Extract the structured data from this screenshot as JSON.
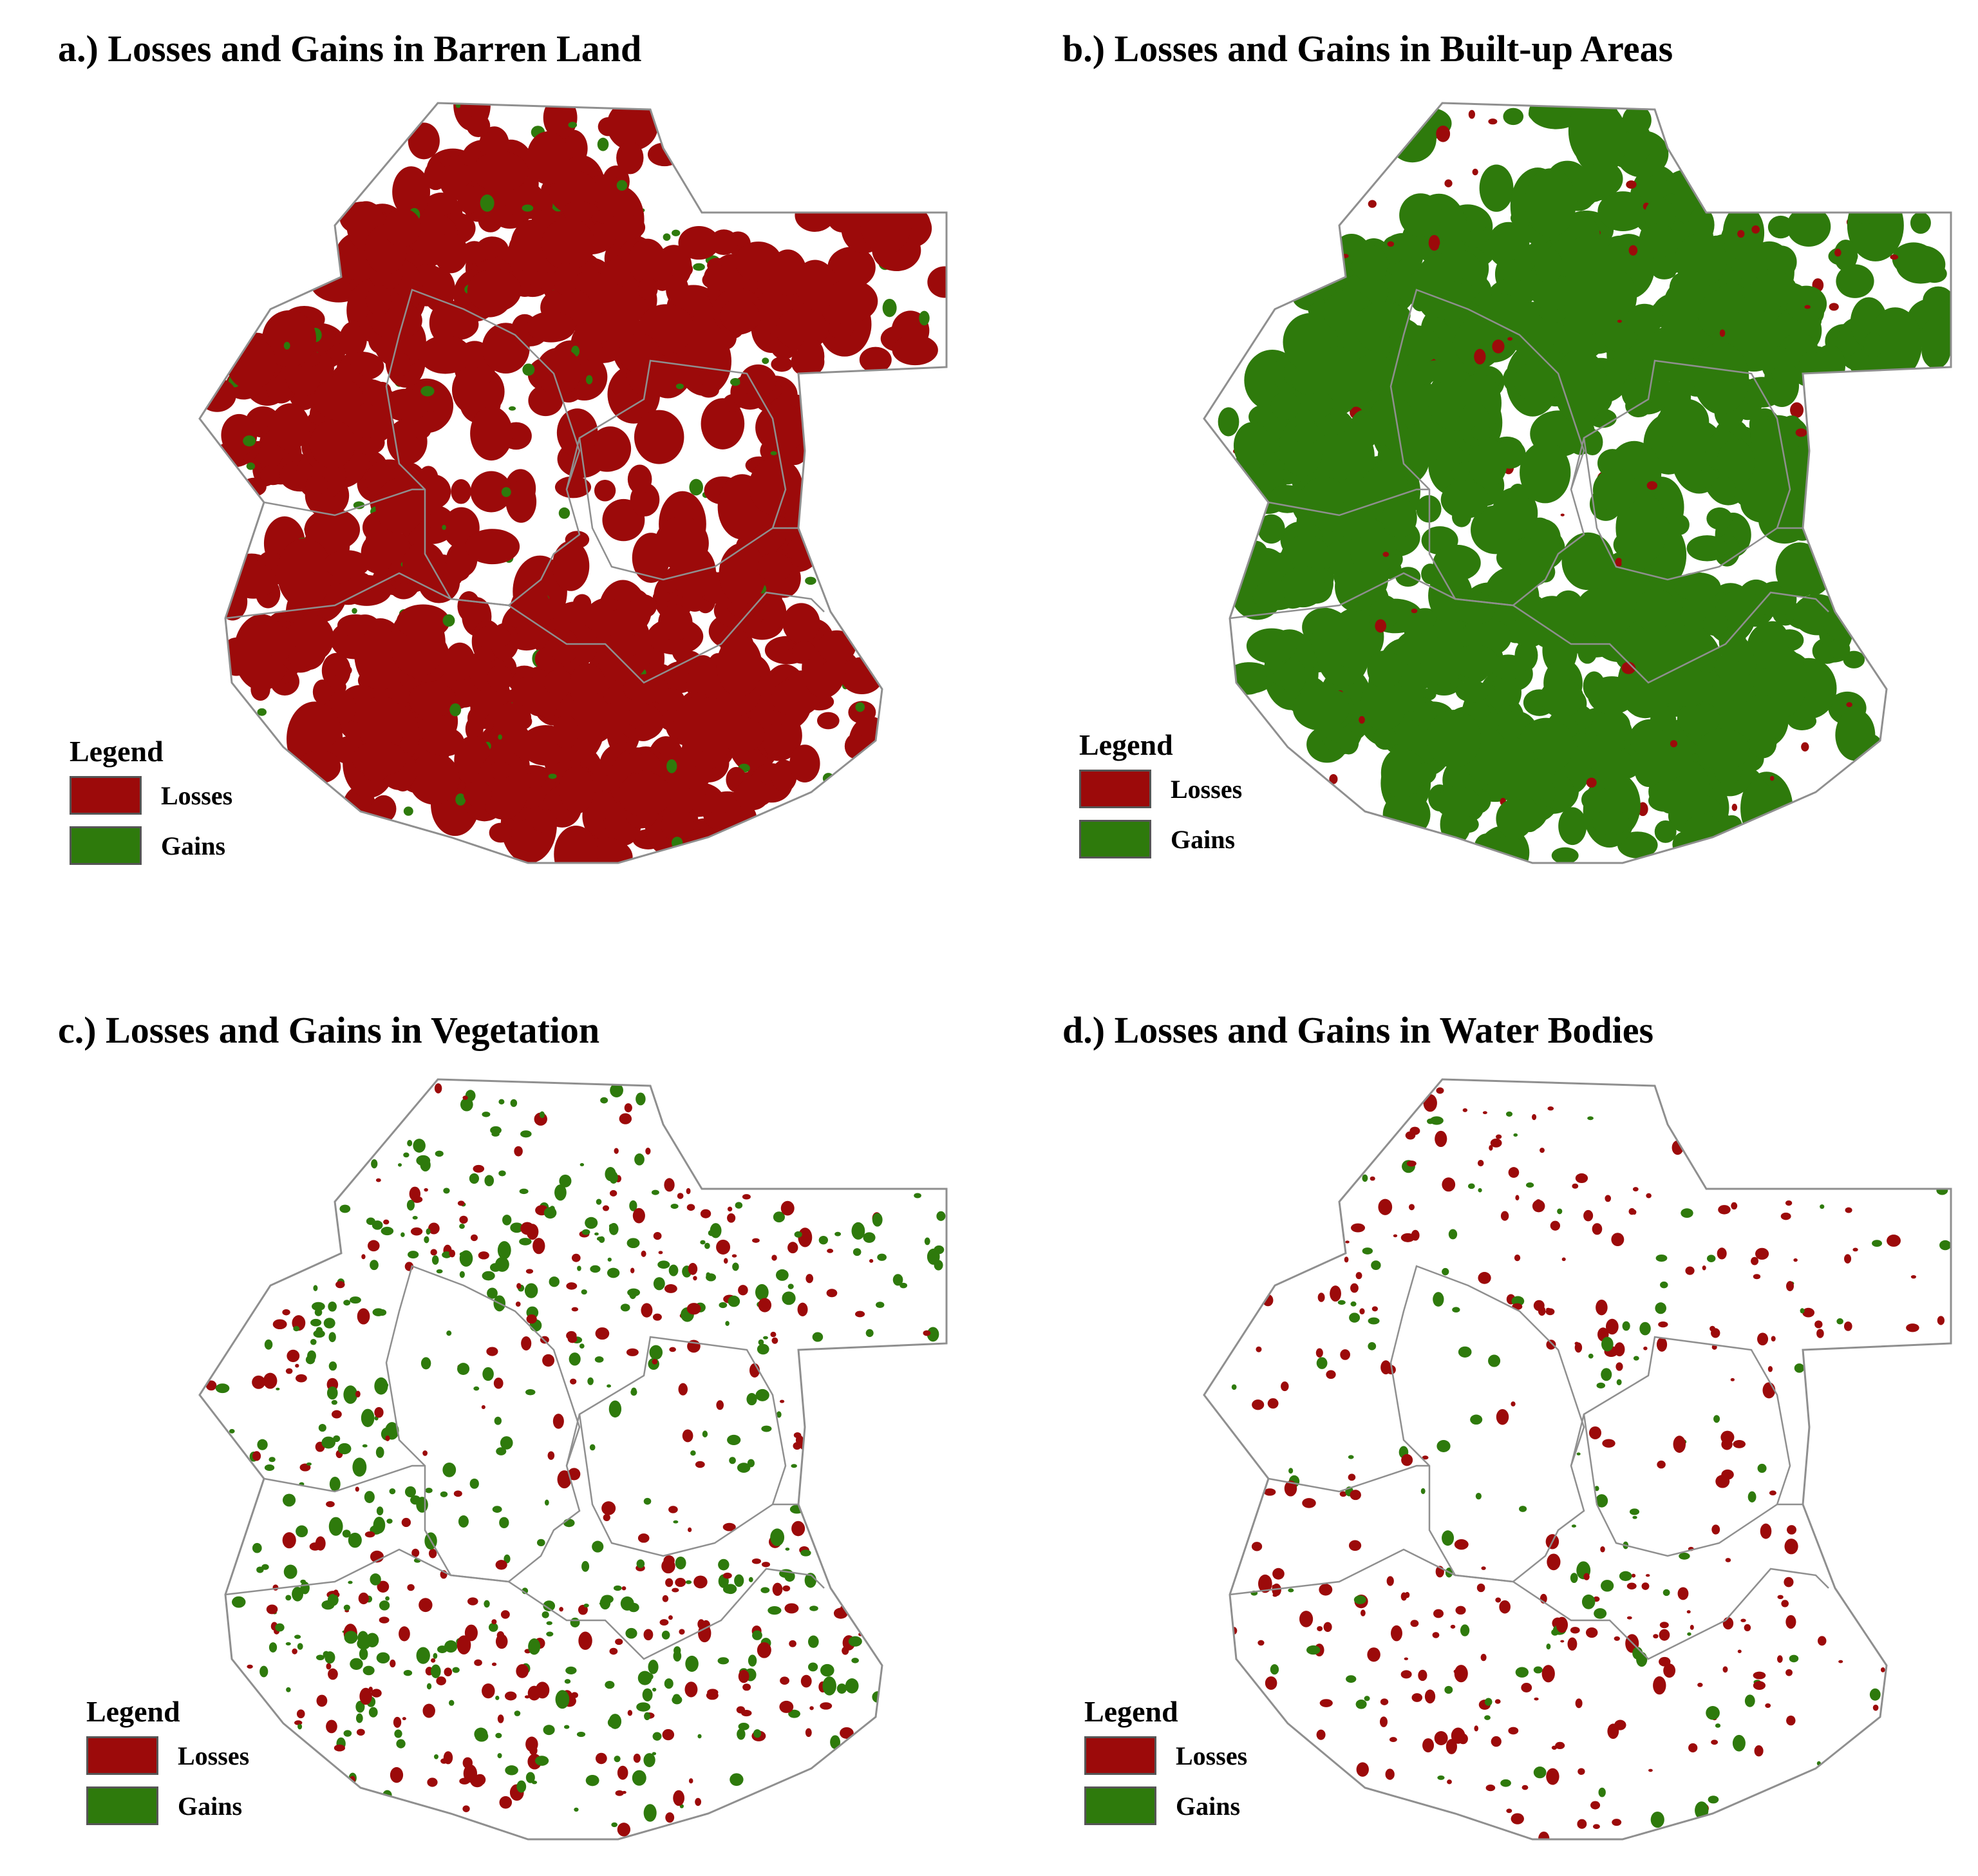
{
  "colors": {
    "losses": "#9c0a0a",
    "gains": "#2e7a0c",
    "boundary": "#8f8f8f"
  },
  "legend": {
    "title": "Legend",
    "losses_label": "Losses",
    "gains_label": "Gains"
  },
  "panels": [
    {
      "title": "a.) Losses and Gains in Barren Land",
      "dominant": "losses",
      "loss_density": 0.85,
      "gain_density": 0.1
    },
    {
      "title": "b.) Losses and Gains in Built-up Areas",
      "dominant": "gains",
      "loss_density": 0.04,
      "gain_density": 0.85
    },
    {
      "title": "c.) Losses and Gains in Vegetation",
      "dominant": "mixed",
      "loss_density": 0.3,
      "gain_density": 0.45
    },
    {
      "title": "d.) Losses and Gains in Water Bodies",
      "dominant": "losses",
      "loss_density": 0.25,
      "gain_density": 0.03
    }
  ]
}
